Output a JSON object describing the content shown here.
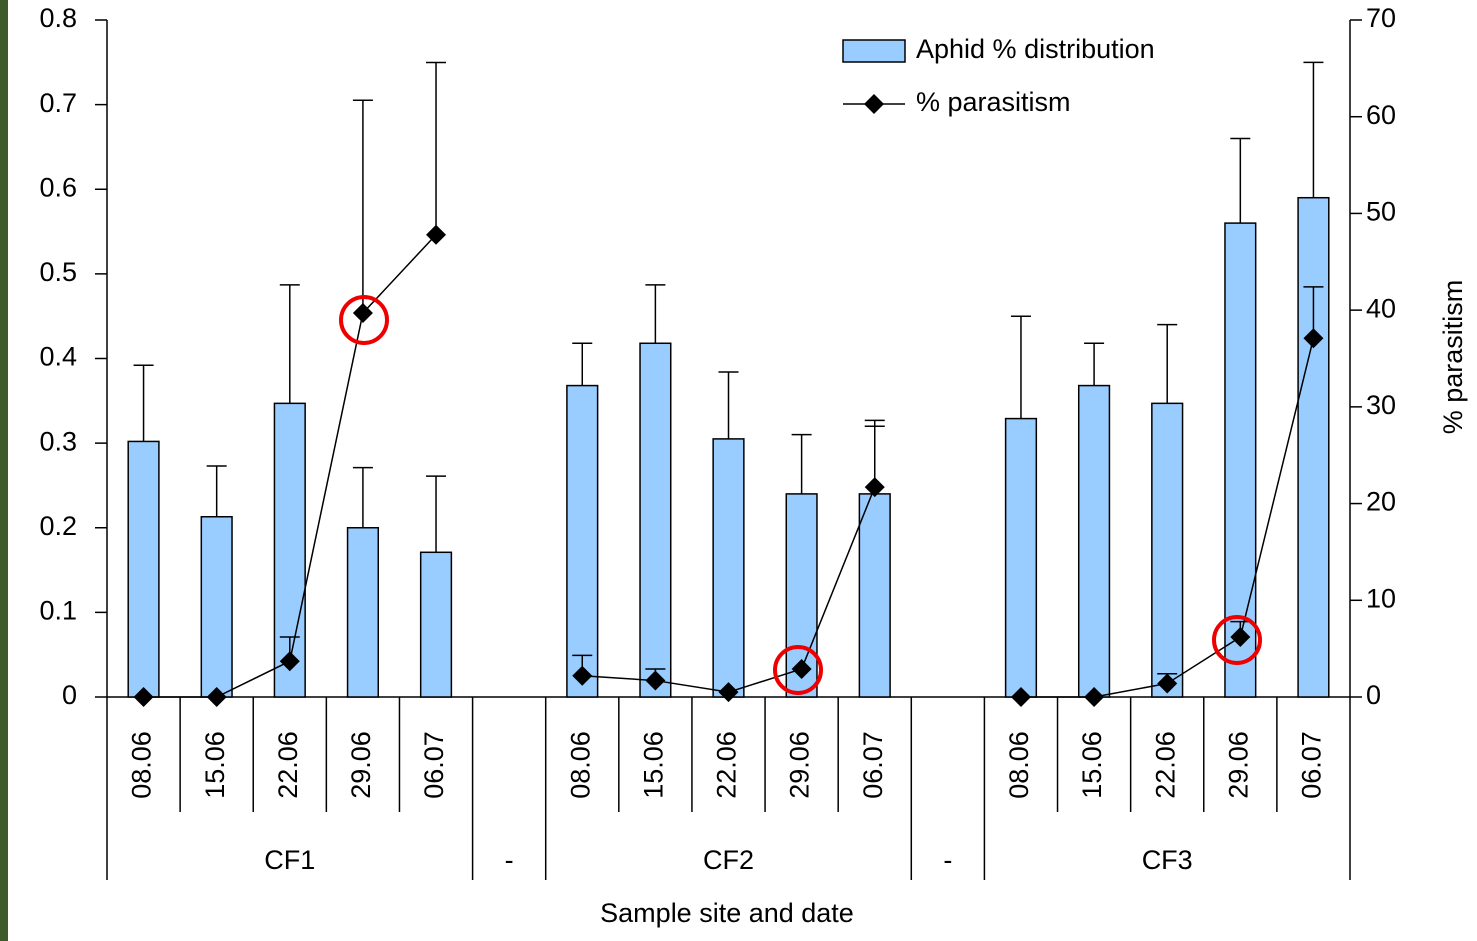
{
  "chart_data": {
    "type": "bar",
    "x_label": "Sample site and date",
    "y2_label": "% parasitism",
    "categories": [
      "08.06",
      "15.06",
      "22.06",
      "29.06",
      "06.07",
      null,
      "08.06",
      "15.06",
      "22.06",
      "29.06",
      "06.07",
      null,
      "08.06",
      "15.06",
      "22.06",
      "29.06",
      "06.07"
    ],
    "groups": [
      "CF1",
      "-",
      "CF2",
      "-",
      "CF3"
    ],
    "series": [
      {
        "name": "Aphid % distribution",
        "color": "#99ccff",
        "axis": "y",
        "values": [
          0.302,
          0.213,
          0.347,
          0.2,
          0.171,
          null,
          0.368,
          0.418,
          0.305,
          0.24,
          0.24,
          null,
          0.329,
          0.368,
          0.347,
          0.56,
          0.59
        ],
        "errors": [
          0.09,
          0.06,
          0.14,
          0.071,
          0.09,
          null,
          0.05,
          0.069,
          0.079,
          0.07,
          0.08,
          null,
          0.121,
          0.05,
          0.093,
          0.1,
          0.16
        ]
      },
      {
        "name": "% parasitism",
        "color": "#000000",
        "axis": "y2",
        "type": "line",
        "values": [
          0,
          0,
          3.7,
          39.7,
          47.8,
          null,
          2.2,
          1.7,
          0.5,
          2.9,
          21.7,
          null,
          0,
          0,
          1.4,
          6.2,
          37.1
        ],
        "errors": [
          null,
          null,
          2.5,
          22,
          17.8,
          null,
          2.1,
          1.2,
          null,
          null,
          6.9,
          null,
          null,
          null,
          1,
          1.6,
          5.3
        ]
      }
    ],
    "ylim": [
      0,
      0.8
    ],
    "yticks": [
      0,
      0.1,
      0.2,
      0.3,
      0.4,
      0.5,
      0.6,
      0.7,
      0.8
    ],
    "y2lim": [
      0,
      70
    ],
    "y2ticks": [
      0,
      10,
      20,
      30,
      40,
      50,
      60,
      70
    ],
    "legend": "upper right"
  }
}
